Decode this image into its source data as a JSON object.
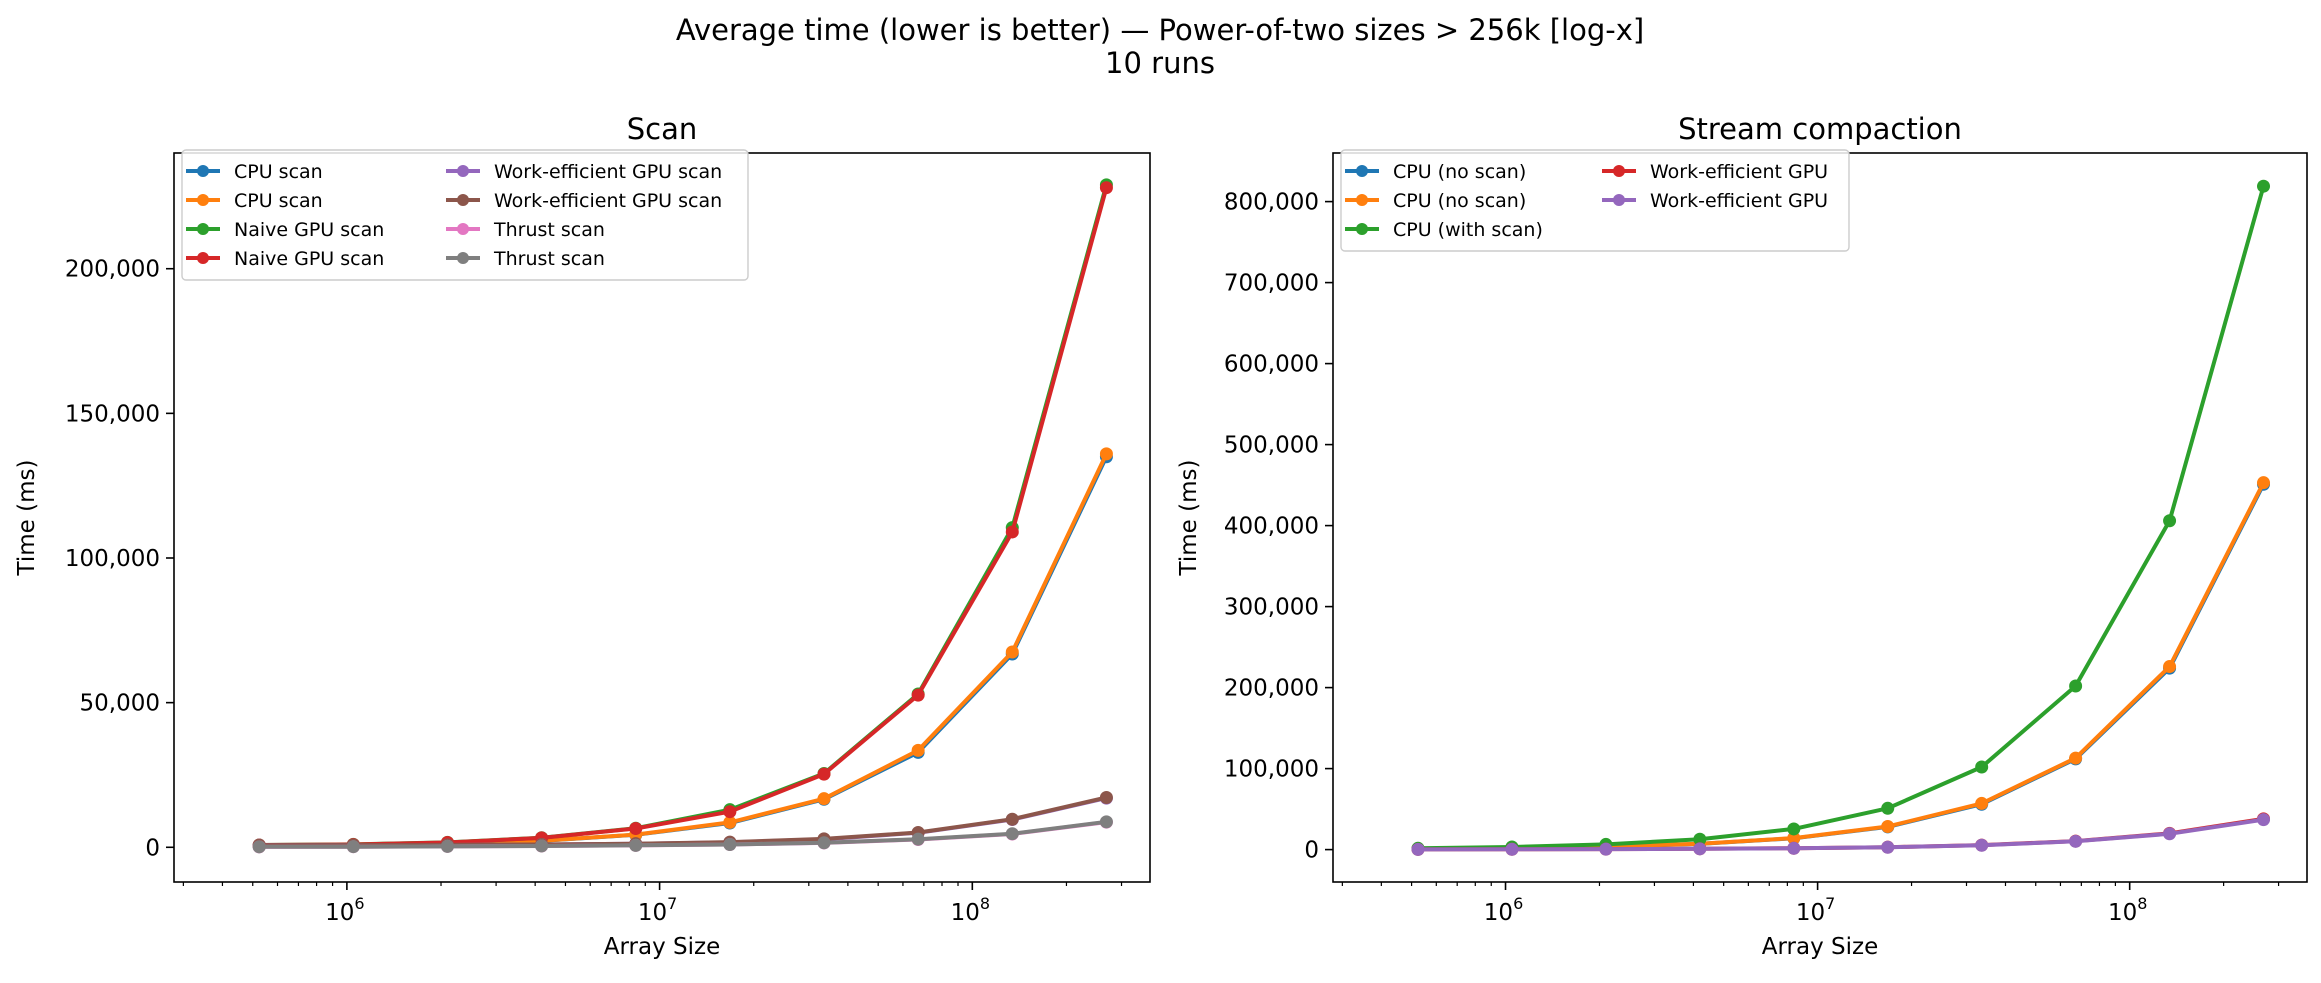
{
  "figure": {
    "suptitle_line1": "Average time (lower is better) — Power-of-two sizes > 256k [log-x]",
    "suptitle_line2": "10 runs"
  },
  "colors": {
    "blue": "#1f77b4",
    "orange": "#ff7f0e",
    "green": "#2ca02c",
    "red": "#d62728",
    "purple": "#9467bd",
    "brown": "#8c564b",
    "pink": "#e377c2",
    "gray": "#7f7f7f"
  },
  "chart_data": [
    {
      "type": "line",
      "title": "Scan",
      "xlabel": "Array Size",
      "ylabel": "Time (ms)",
      "xscale": "log",
      "xlim": [
        280000,
        370000000
      ],
      "ylim": [
        -12000,
        240000
      ],
      "xticks": [
        1000000,
        10000000,
        100000000
      ],
      "xtick_labels": [
        [
          "10",
          "6"
        ],
        [
          "10",
          "7"
        ],
        [
          "10",
          "8"
        ]
      ],
      "yticks": [
        0,
        50000,
        100000,
        150000,
        200000
      ],
      "ytick_labels": [
        "0",
        "50,000",
        "100,000",
        "150,000",
        "200,000"
      ],
      "grid": false,
      "legend": {
        "placement": "upper-left",
        "columns": 2
      },
      "x": [
        524288,
        1048576,
        2097152,
        4194304,
        8388608,
        16777216,
        33554432,
        67108864,
        134217728,
        268435456
      ],
      "series": [
        {
          "name": "CPU scan",
          "color": "#1f77b4",
          "values": [
            290,
            560,
            1100,
            2200,
            4300,
            8400,
            16600,
            32800,
            66800,
            135000
          ]
        },
        {
          "name": "CPU scan",
          "color": "#ff7f0e",
          "values": [
            300,
            580,
            1150,
            2250,
            4400,
            8600,
            16800,
            33500,
            67500,
            136000
          ]
        },
        {
          "name": "Naive GPU scan",
          "color": "#2ca02c",
          "values": [
            800,
            1000,
            1700,
            3300,
            6600,
            13000,
            25500,
            53000,
            110500,
            229000
          ]
        },
        {
          "name": "Naive GPU scan",
          "color": "#d62728",
          "values": [
            780,
            980,
            1650,
            3250,
            6500,
            12300,
            25300,
            52600,
            109000,
            228000
          ]
        },
        {
          "name": "Work-efficient GPU scan",
          "color": "#9467bd",
          "values": [
            700,
            750,
            800,
            950,
            1200,
            1700,
            2800,
            5000,
            9600,
            17000
          ]
        },
        {
          "name": "Work-efficient GPU scan",
          "color": "#8c564b",
          "values": [
            720,
            770,
            820,
            980,
            1250,
            1800,
            2900,
            5100,
            9700,
            17200
          ]
        },
        {
          "name": "Thrust scan",
          "color": "#e377c2",
          "values": [
            150,
            200,
            300,
            450,
            650,
            950,
            1500,
            2700,
            4600,
            8700
          ]
        },
        {
          "name": "Thrust scan",
          "color": "#7f7f7f",
          "values": [
            160,
            210,
            310,
            460,
            670,
            970,
            1550,
            2800,
            4700,
            8800
          ]
        }
      ]
    },
    {
      "type": "line",
      "title": "Stream compaction",
      "xlabel": "Array Size",
      "ylabel": "Time (ms)",
      "xscale": "log",
      "xlim": [
        280000,
        370000000
      ],
      "ylim": [
        -40000,
        860000
      ],
      "xticks": [
        1000000,
        10000000,
        100000000
      ],
      "xtick_labels": [
        [
          "10",
          "6"
        ],
        [
          "10",
          "7"
        ],
        [
          "10",
          "8"
        ]
      ],
      "yticks": [
        0,
        100000,
        200000,
        300000,
        400000,
        500000,
        600000,
        700000,
        800000
      ],
      "ytick_labels": [
        "0",
        "100,000",
        "200,000",
        "300,000",
        "400,000",
        "500,000",
        "600,000",
        "700,000",
        "800,000"
      ],
      "grid": false,
      "legend": {
        "placement": "upper-left",
        "columns": 2
      },
      "x": [
        524288,
        1048576,
        2097152,
        4194304,
        8388608,
        16777216,
        33554432,
        67108864,
        134217728,
        268435456
      ],
      "series": [
        {
          "name": "CPU (no scan)",
          "color": "#1f77b4",
          "values": [
            900,
            1750,
            3500,
            7000,
            14000,
            28000,
            56000,
            112000,
            224000,
            451000
          ]
        },
        {
          "name": "CPU (no scan)",
          "color": "#ff7f0e",
          "values": [
            950,
            1800,
            3600,
            7100,
            14200,
            28500,
            57000,
            113000,
            226000,
            453000
          ]
        },
        {
          "name": "CPU (with scan)",
          "color": "#2ca02c",
          "values": [
            1600,
            3200,
            6400,
            12800,
            25500,
            51000,
            102000,
            202000,
            406000,
            819000
          ]
        },
        {
          "name": "Work-efficient GPU",
          "color": "#d62728",
          "values": [
            300,
            400,
            600,
            1000,
            1700,
            3000,
            5500,
            10500,
            20000,
            38000
          ]
        },
        {
          "name": "Work-efficient GPU",
          "color": "#9467bd",
          "values": [
            280,
            380,
            580,
            950,
            1650,
            2900,
            5300,
            10200,
            19500,
            37000
          ]
        }
      ]
    }
  ]
}
